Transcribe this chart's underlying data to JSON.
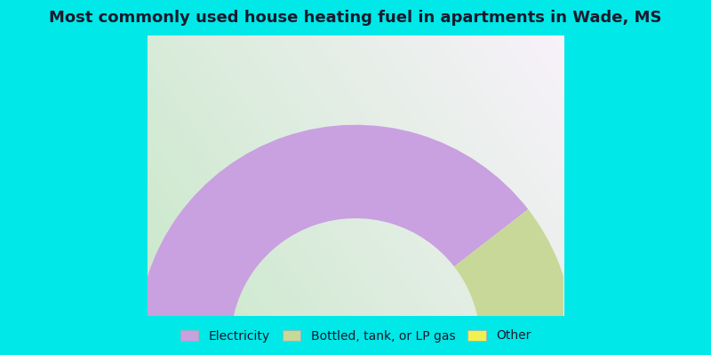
{
  "title": "Most commonly used house heating fuel in apartments in Wade, MS",
  "title_fontsize": 13,
  "cyan_color": "#00e8e8",
  "slices": [
    {
      "label": "Electricity",
      "value": 79.0,
      "color": "#c9a0e0"
    },
    {
      "label": "Bottled, tank, or LP gas",
      "value": 17.0,
      "color": "#c8d898"
    },
    {
      "label": "Other",
      "value": 4.0,
      "color": "#f0f050"
    }
  ],
  "legend_fontsize": 10,
  "figsize": [
    8.0,
    4.0
  ],
  "dpi": 100,
  "title_bar_height": 0.1,
  "legend_bar_height": 0.11
}
